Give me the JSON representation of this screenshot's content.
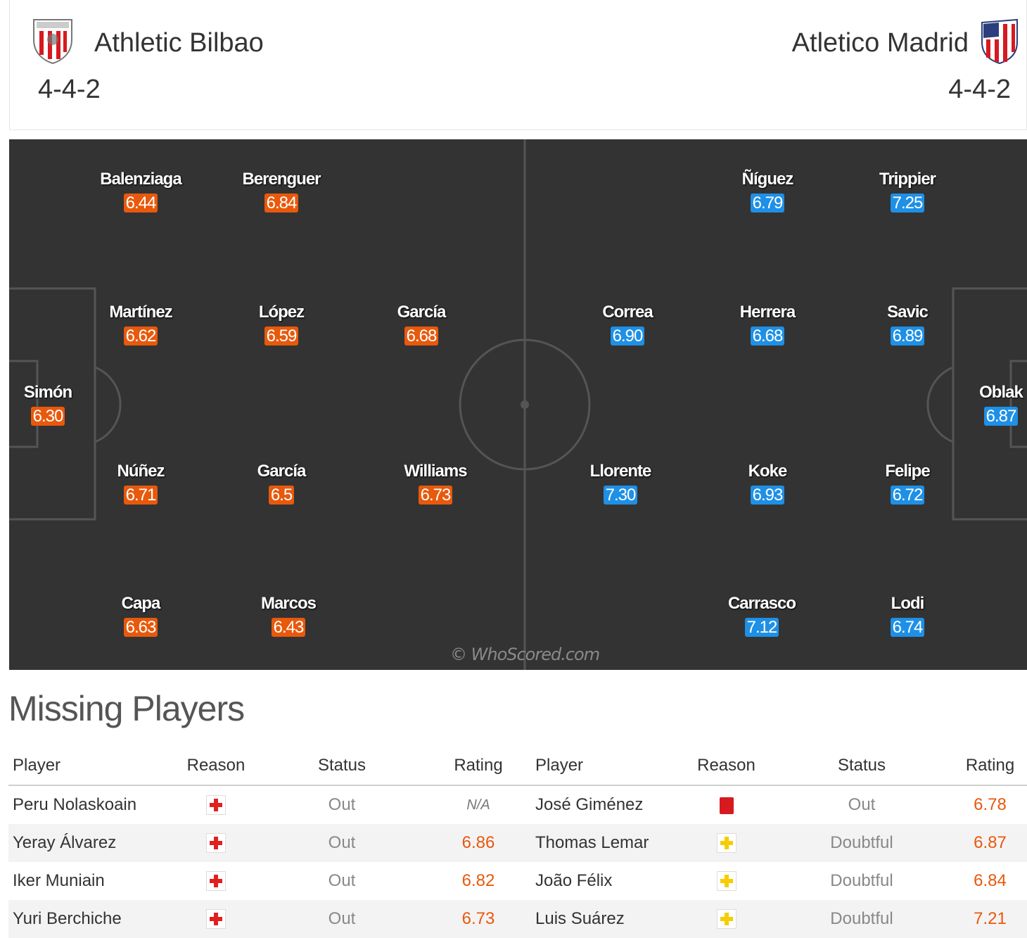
{
  "home": {
    "name": "Athletic Bilbao",
    "formation": "4-4-2",
    "color": "#e8590c",
    "players": [
      {
        "name": "Simón",
        "rating": "6.30"
      },
      {
        "name": "Balenziaga",
        "rating": "6.44"
      },
      {
        "name": "Berenguer",
        "rating": "6.84"
      },
      {
        "name": "Martínez",
        "rating": "6.62"
      },
      {
        "name": "López",
        "rating": "6.59"
      },
      {
        "name": "García",
        "rating": "6.68"
      },
      {
        "name": "Núñez",
        "rating": "6.71"
      },
      {
        "name": "García",
        "rating": "6.5"
      },
      {
        "name": "Williams",
        "rating": "6.73"
      },
      {
        "name": "Capa",
        "rating": "6.63"
      },
      {
        "name": "Marcos",
        "rating": "6.43"
      }
    ]
  },
  "away": {
    "name": "Atletico Madrid",
    "formation": "4-4-2",
    "color": "#1e90e6",
    "players": [
      {
        "name": "Oblak",
        "rating": "6.87"
      },
      {
        "name": "Ñíguez",
        "rating": "6.79"
      },
      {
        "name": "Trippier",
        "rating": "7.25"
      },
      {
        "name": "Correa",
        "rating": "6.90"
      },
      {
        "name": "Herrera",
        "rating": "6.68"
      },
      {
        "name": "Savic",
        "rating": "6.89"
      },
      {
        "name": "Llorente",
        "rating": "7.30"
      },
      {
        "name": "Koke",
        "rating": "6.93"
      },
      {
        "name": "Felipe",
        "rating": "6.72"
      },
      {
        "name": "Carrasco",
        "rating": "7.12"
      },
      {
        "name": "Lodi",
        "rating": "6.74"
      }
    ]
  },
  "watermark": "© WhoScored.com",
  "missing": {
    "title": "Missing Players",
    "columns": [
      "Player",
      "Reason",
      "Status",
      "Rating",
      "Player",
      "Reason",
      "Status",
      "Rating"
    ],
    "rows": [
      {
        "home_player": "Peru Nolaskoain",
        "home_reason": "injury-icon",
        "home_status": "Out",
        "home_rating": "N/A",
        "away_player": "José Giménez",
        "away_reason": "red-card-icon",
        "away_status": "Out",
        "away_rating": "6.78"
      },
      {
        "home_player": "Yeray Álvarez",
        "home_reason": "injury-icon",
        "home_status": "Out",
        "home_rating": "6.86",
        "away_player": "Thomas Lemar",
        "away_reason": "doubtful-icon",
        "away_status": "Doubtful",
        "away_rating": "6.87"
      },
      {
        "home_player": "Iker Muniain",
        "home_reason": "injury-icon",
        "home_status": "Out",
        "home_rating": "6.82",
        "away_player": "João Félix",
        "away_reason": "doubtful-icon",
        "away_status": "Doubtful",
        "away_rating": "6.84"
      },
      {
        "home_player": "Yuri Berchiche",
        "home_reason": "injury-icon",
        "home_status": "Out",
        "home_rating": "6.73",
        "away_player": "Luis Suárez",
        "away_reason": "doubtful-icon",
        "away_status": "Doubtful",
        "away_rating": "7.21"
      }
    ]
  }
}
